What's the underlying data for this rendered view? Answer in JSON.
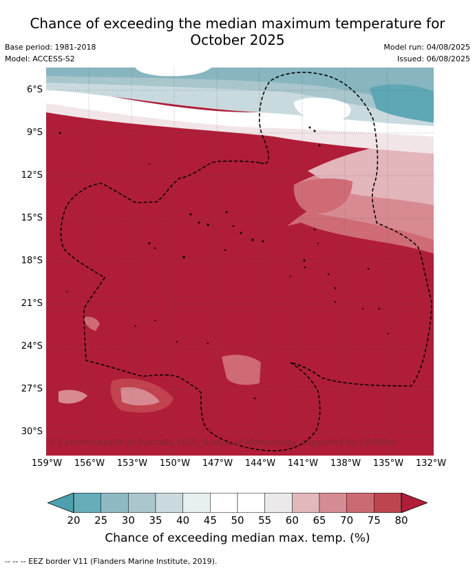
{
  "title": {
    "line1": "Chance of exceeding the median maximum temperature for",
    "line2": "October 2025"
  },
  "meta": {
    "base_period": "Base period: 1981-2018",
    "model": "Model: ACCESS-S2",
    "model_run": "Model run: 04/08/2025",
    "issued": "Issued: 06/08/2025"
  },
  "map": {
    "lat_labels": [
      "6°S",
      "9°S",
      "12°S",
      "15°S",
      "18°S",
      "21°S",
      "24°S",
      "27°S",
      "30°S"
    ],
    "lon_labels": [
      "159°W",
      "156°W",
      "153°W",
      "150°W",
      "147°W",
      "144°W",
      "141°W",
      "138°W",
      "135°W",
      "132°W"
    ],
    "copyright": "© Commonwealth of Australia 2025, Bureau of Meteorology, supported by COSPPac",
    "colors": {
      "background_red": "#b01d38",
      "red_75": "#c2424f",
      "red_70": "#cf6b75",
      "red_65": "#d88a92",
      "red_60": "#e3b6bb",
      "white": "#ffffff",
      "teal_35": "#c9dadf",
      "teal_30": "#a8c6cc",
      "teal_25": "#87b5c0",
      "teal_20": "#5ea7b5"
    }
  },
  "colorbar": {
    "ticks": [
      "20",
      "25",
      "30",
      "35",
      "40",
      "45",
      "50",
      "55",
      "60",
      "65",
      "70",
      "75",
      "80"
    ],
    "label": "Chance of exceeding median max. temp. (%)",
    "colors": [
      "#66adb9",
      "#8fbac4",
      "#abc7cd",
      "#cbdadf",
      "#e8eff1",
      "#ffffff",
      "#ffffff",
      "#ece9ea",
      "#e2b8bd",
      "#d68c94",
      "#cb6a72",
      "#bd4550"
    ],
    "under_color": "#4ea0b0",
    "over_color": "#b01d38"
  },
  "footer": "--  --  -- EEZ border V11 (Flanders Marine Institute, 2019)."
}
